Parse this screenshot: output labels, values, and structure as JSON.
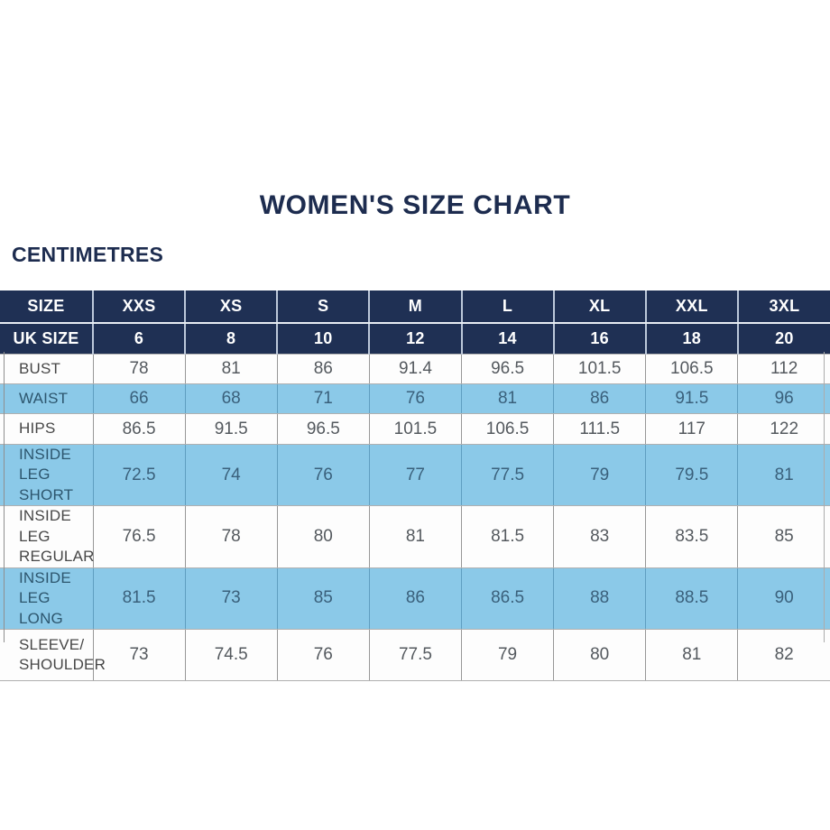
{
  "page": {
    "title": "WOMEN'S SIZE CHART",
    "unit_label": "CENTIMETRES"
  },
  "colors": {
    "navy_header": "#1f3054",
    "light_blue_row": "#8bc9e8",
    "white_row": "#fdfdfd",
    "title_text": "#1d2c4f",
    "header_text": "#ffffff",
    "body_text": "#54595e"
  },
  "chart_data": {
    "type": "table",
    "title": "WOMEN'S SIZE CHART",
    "unit": "CENTIMETRES",
    "columns": [
      "SIZE",
      "XXS",
      "XS",
      "S",
      "M",
      "L",
      "XL",
      "XXL",
      "3XL"
    ],
    "uk_size_row": {
      "label": "UK SIZE",
      "values": [
        6,
        8,
        10,
        12,
        14,
        16,
        18,
        20
      ]
    },
    "rows": [
      {
        "label": "BUST",
        "highlight": false,
        "values": [
          78,
          81,
          86,
          91.4,
          96.5,
          101.5,
          106.5,
          112
        ]
      },
      {
        "label": "WAIST",
        "highlight": true,
        "values": [
          66,
          68,
          71,
          76,
          81,
          86,
          91.5,
          96
        ]
      },
      {
        "label": "HIPS",
        "highlight": false,
        "values": [
          86.5,
          91.5,
          96.5,
          101.5,
          106.5,
          111.5,
          117,
          122
        ]
      },
      {
        "label": "INSIDE LEG\nSHORT",
        "highlight": true,
        "values": [
          72.5,
          74,
          76,
          77,
          77.5,
          79,
          79.5,
          81
        ]
      },
      {
        "label": "INSIDE LEG\nREGULAR",
        "highlight": false,
        "values": [
          76.5,
          78,
          80,
          81,
          81.5,
          83,
          83.5,
          85
        ]
      },
      {
        "label": "INSIDE LEG\nLONG",
        "highlight": true,
        "values": [
          81.5,
          73,
          85,
          86,
          86.5,
          88,
          88.5,
          90
        ]
      },
      {
        "label": "SLEEVE/\nSHOULDER",
        "highlight": false,
        "values": [
          73,
          74.5,
          76,
          77.5,
          79,
          80,
          81,
          82
        ]
      }
    ]
  }
}
